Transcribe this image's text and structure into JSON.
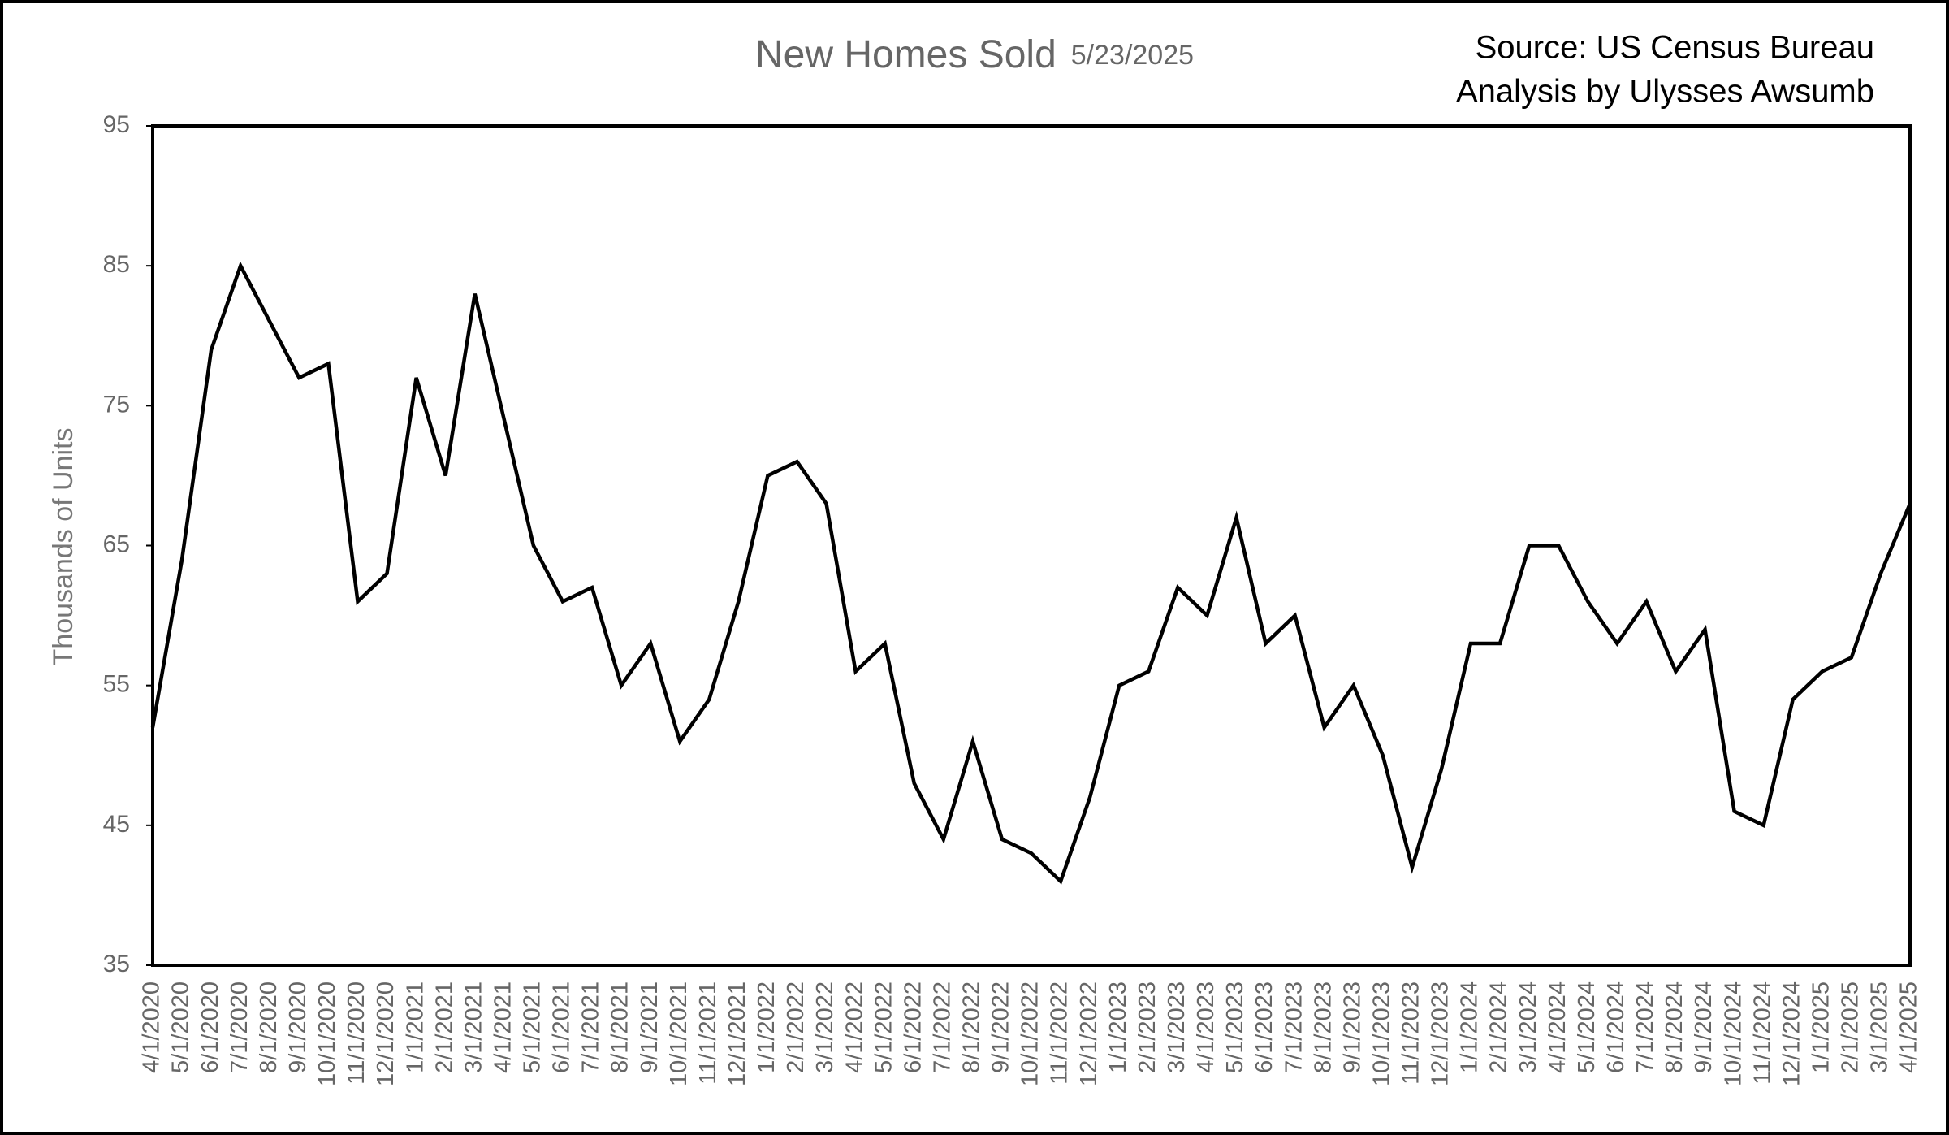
{
  "chart_data": {
    "type": "line",
    "title": "New Homes Sold",
    "subtitle": "5/23/2025",
    "annotations": [
      "Source: US Census Bureau",
      "Analysis by Ulysses Awsumb"
    ],
    "ylabel": "Thousands of Units",
    "categories": [
      "4/1/2020",
      "5/1/2020",
      "6/1/2020",
      "7/1/2020",
      "8/1/2020",
      "9/1/2020",
      "10/1/2020",
      "11/1/2020",
      "12/1/2020",
      "1/1/2021",
      "2/1/2021",
      "3/1/2021",
      "4/1/2021",
      "5/1/2021",
      "6/1/2021",
      "7/1/2021",
      "8/1/2021",
      "9/1/2021",
      "10/1/2021",
      "11/1/2021",
      "12/1/2021",
      "1/1/2022",
      "2/1/2022",
      "3/1/2022",
      "4/1/2022",
      "5/1/2022",
      "6/1/2022",
      "7/1/2022",
      "8/1/2022",
      "9/1/2022",
      "10/1/2022",
      "11/1/2022",
      "12/1/2022",
      "1/1/2023",
      "2/1/2023",
      "3/1/2023",
      "4/1/2023",
      "5/1/2023",
      "6/1/2023",
      "7/1/2023",
      "8/1/2023",
      "9/1/2023",
      "10/1/2023",
      "11/1/2023",
      "12/1/2023",
      "1/1/2024",
      "2/1/2024",
      "3/1/2024",
      "4/1/2024",
      "5/1/2024",
      "6/1/2024",
      "7/1/2024",
      "8/1/2024",
      "9/1/2024",
      "10/1/2024",
      "11/1/2024",
      "12/1/2024",
      "1/1/2025",
      "2/1/2025",
      "3/1/2025",
      "4/1/2025"
    ],
    "values": [
      52,
      64,
      79,
      85,
      81,
      77,
      78,
      61,
      63,
      77,
      70,
      83,
      74,
      65,
      61,
      62,
      55,
      58,
      51,
      54,
      61,
      70,
      71,
      68,
      56,
      58,
      48,
      44,
      51,
      44,
      43,
      41,
      47,
      55,
      56,
      62,
      60,
      67,
      58,
      60,
      52,
      55,
      50,
      42,
      49,
      58,
      58,
      65,
      65,
      61,
      58,
      61,
      56,
      59,
      46,
      45,
      54,
      56,
      57,
      63,
      68
    ],
    "color": "#000000",
    "ylim": [
      35,
      95
    ],
    "yticks": [
      35,
      45,
      55,
      65,
      75,
      85,
      95
    ],
    "grid": false
  }
}
